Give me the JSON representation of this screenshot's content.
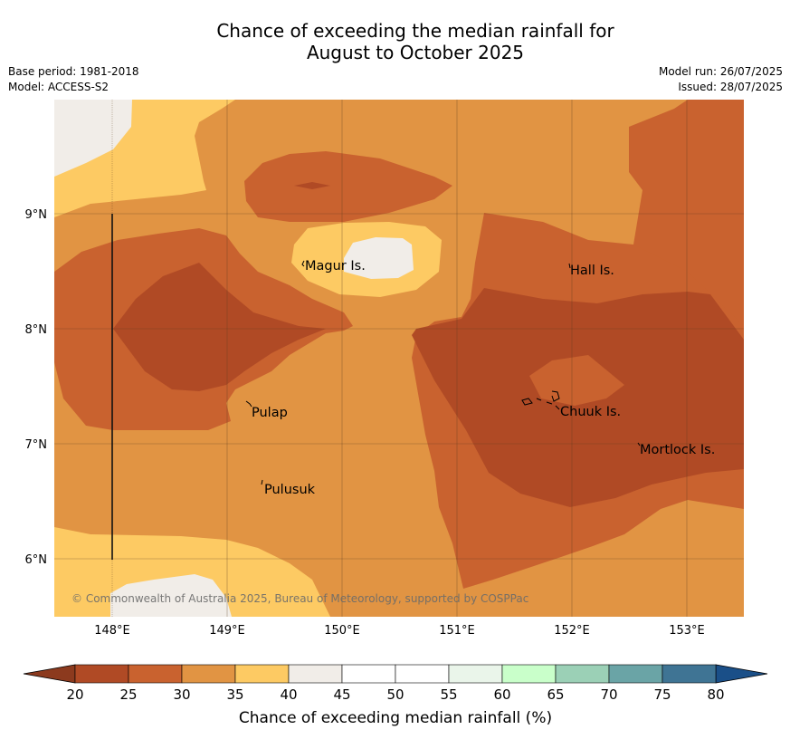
{
  "title": {
    "line1": "Chance of exceeding the median rainfall for",
    "line2": "August to October 2025"
  },
  "meta_left": {
    "base_period": "Base period: 1981-2018",
    "model": "Model: ACCESS-S2"
  },
  "meta_right": {
    "model_run": "Model run: 26/07/2025",
    "issued": "Issued: 28/07/2025"
  },
  "map": {
    "lat_labels": [
      "9°N",
      "8°N",
      "7°N",
      "6°N"
    ],
    "lon_labels": [
      "148°E",
      "149°E",
      "150°E",
      "151°E",
      "152°E",
      "153°E"
    ],
    "places": [
      "Magur Is.",
      "Hall Is.",
      "Pulap",
      "Chuuk Is.",
      "Mortlock Is.",
      "Pulusuk"
    ],
    "copyright": "© Commonwealth of Australia 2025, Bureau of Meteorology, supported by COSPPac"
  },
  "colorbar": {
    "ticks": [
      "20",
      "25",
      "30",
      "35",
      "40",
      "45",
      "50",
      "55",
      "60",
      "65",
      "70",
      "75",
      "80"
    ],
    "colors": [
      "#b04a25",
      "#c9622f",
      "#e19443",
      "#fdca63",
      "#f1ede8",
      "#ffffff",
      "#ffffff",
      "#eaf5ea",
      "#c9ffca",
      "#9bd0b6",
      "#6aa4a6",
      "#3f7494"
    ],
    "low_color": "#8c3a1e",
    "high_color": "#1a4f88",
    "label": "Chance of exceeding median rainfall (%)"
  }
}
